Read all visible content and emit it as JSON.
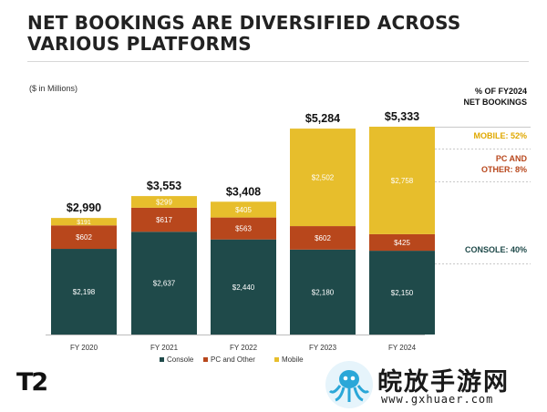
{
  "header": {
    "title_line1": "NET BOOKINGS ARE DIVERSIFIED ACROSS",
    "title_line2": "VARIOUS PLATFORMS"
  },
  "unit_label": "($ in Millions)",
  "side_panel": {
    "heading_line1": "% OF FY2024",
    "heading_line2": "NET BOOKINGS",
    "items": [
      {
        "line1": "MOBILE: 52%",
        "line2": "",
        "color": "#e0a800"
      },
      {
        "line1": "PC AND",
        "line2": "OTHER: 8%",
        "color": "#b8471c"
      },
      {
        "line1": "CONSOLE: 40%",
        "line2": "",
        "color": "#1f4a4a"
      }
    ]
  },
  "logo_text": "T2",
  "watermark": {
    "text": "皖放手游网",
    "url": "www.gxhuaer.com"
  },
  "chart_data": {
    "type": "bar",
    "stacked": true,
    "categories": [
      "FY 2020",
      "FY 2021",
      "FY 2022",
      "FY 2023",
      "FY 2024"
    ],
    "series": [
      {
        "name": "Console",
        "color": "#1f4a4a",
        "values": [
          2198,
          2637,
          2440,
          2180,
          2150
        ],
        "labels": [
          "$2,198",
          "$2,637",
          "$2,440",
          "$2,180",
          "$2,150"
        ]
      },
      {
        "name": "PC and Other",
        "color": "#b8471c",
        "values": [
          602,
          617,
          563,
          602,
          425
        ],
        "labels": [
          "$602",
          "$617",
          "$563",
          "$602",
          "$425"
        ]
      },
      {
        "name": "Mobile",
        "color": "#e7be2c",
        "values": [
          191,
          299,
          405,
          2502,
          2758
        ],
        "labels": [
          "$191",
          "$299",
          "$405",
          "$2,502",
          "$2,758"
        ]
      }
    ],
    "totals": [
      2990,
      3553,
      3408,
      5284,
      5333
    ],
    "total_labels": [
      "$2,990",
      "$3,553",
      "$3,408",
      "$5,284",
      "$5,333"
    ],
    "ylim": [
      0,
      5333
    ],
    "grid": false,
    "legend_position": "bottom"
  }
}
